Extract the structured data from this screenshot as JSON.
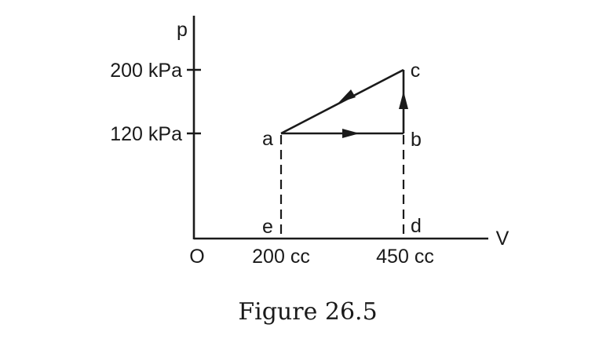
{
  "axes": {
    "y_label": "p",
    "x_label": "V",
    "origin_label": "O",
    "y_ticks": [
      "200 kPa",
      "120 kPa"
    ],
    "x_ticks": [
      "200 cc",
      "450 cc"
    ]
  },
  "points": {
    "a": "a",
    "b": "b",
    "c": "c",
    "d": "d",
    "e": "e"
  },
  "caption": "Figure 26.5"
}
